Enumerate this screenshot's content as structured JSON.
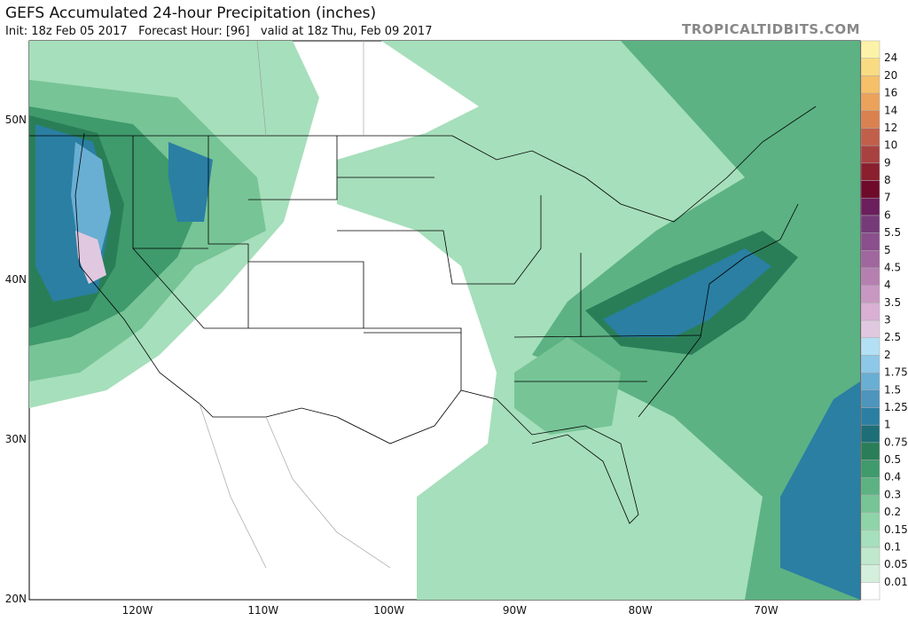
{
  "header": {
    "title": "GEFS Accumulated 24-hour Precipitation (inches)",
    "subtitle": "Init: 18z Feb 05 2017   Forecast Hour: [96]   valid at 18z Thu, Feb 09 2017",
    "source": "TROPICALTIDBITS.COM"
  },
  "map": {
    "lat_labels": [
      "50N",
      "40N",
      "30N",
      "20N"
    ],
    "lon_labels": [
      "120W",
      "110W",
      "100W",
      "90W",
      "80W",
      "70W"
    ]
  },
  "colorbar": {
    "levels": [
      0.01,
      0.05,
      0.1,
      0.15,
      0.2,
      0.3,
      0.4,
      0.5,
      0.75,
      1,
      1.25,
      1.5,
      1.75,
      2,
      2.5,
      3,
      3.5,
      4,
      4.5,
      5,
      5.5,
      6,
      7,
      8,
      9,
      10,
      12,
      14,
      16,
      20,
      24
    ],
    "colors": [
      "#d4f0dd",
      "#bfe8cc",
      "#a6dfbb",
      "#8fd4a9",
      "#77c497",
      "#5cb283",
      "#3f9a6c",
      "#2a7e57",
      "#1e6e78",
      "#2a7fa3",
      "#4d95bc",
      "#69aed3",
      "#8ec8e8",
      "#b3e0f5",
      "#e0c9e0",
      "#d9b0d4",
      "#c898c2",
      "#b57fb0",
      "#a0669e",
      "#8a4f8c",
      "#763a79",
      "#6b1f5c",
      "#6e0a2a",
      "#8a1f2e",
      "#a84240",
      "#c0604a",
      "#d9814f",
      "#eba25a",
      "#f5c068",
      "#f9dc82",
      "#fcf3a8"
    ]
  }
}
